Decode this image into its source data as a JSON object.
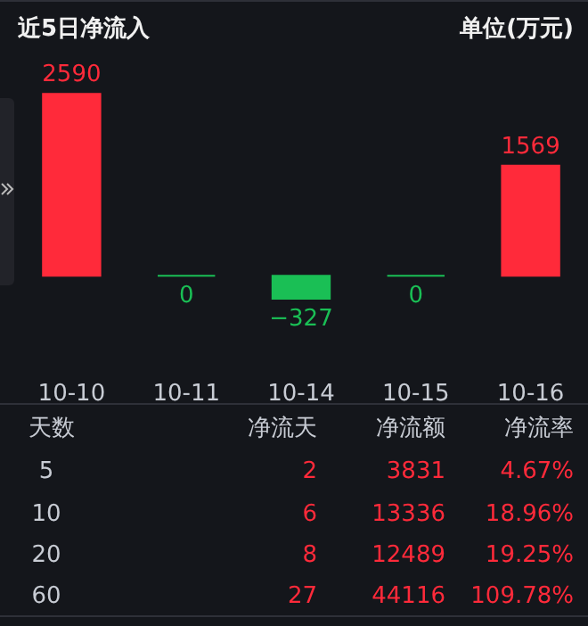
{
  "chart_data": [
    {
      "type": "bar",
      "title": "近5日净流入",
      "annotations": [
        "单位(万元)"
      ],
      "categories": [
        "10-10",
        "10-11",
        "10-14",
        "10-15",
        "10-16"
      ],
      "values": [
        2590,
        0,
        -327,
        0,
        1569
      ],
      "colors": [
        "#ff2a3a",
        "#1abf55",
        "#1abf55",
        "#1abf55",
        "#ff2a3a"
      ],
      "data_labels": true
    },
    {
      "type": "other",
      "categories": [
        "天数",
        "净流天",
        "净流额",
        "净流率"
      ],
      "y_categories": [
        "5",
        "10",
        "20",
        "60"
      ],
      "cell_labels": [
        [
          "2",
          "3831",
          "4.67%"
        ],
        [
          "6",
          "13336",
          "18.96%"
        ],
        [
          "8",
          "12489",
          "19.25%"
        ],
        [
          "27",
          "44116",
          "109.78%"
        ]
      ]
    }
  ]
}
